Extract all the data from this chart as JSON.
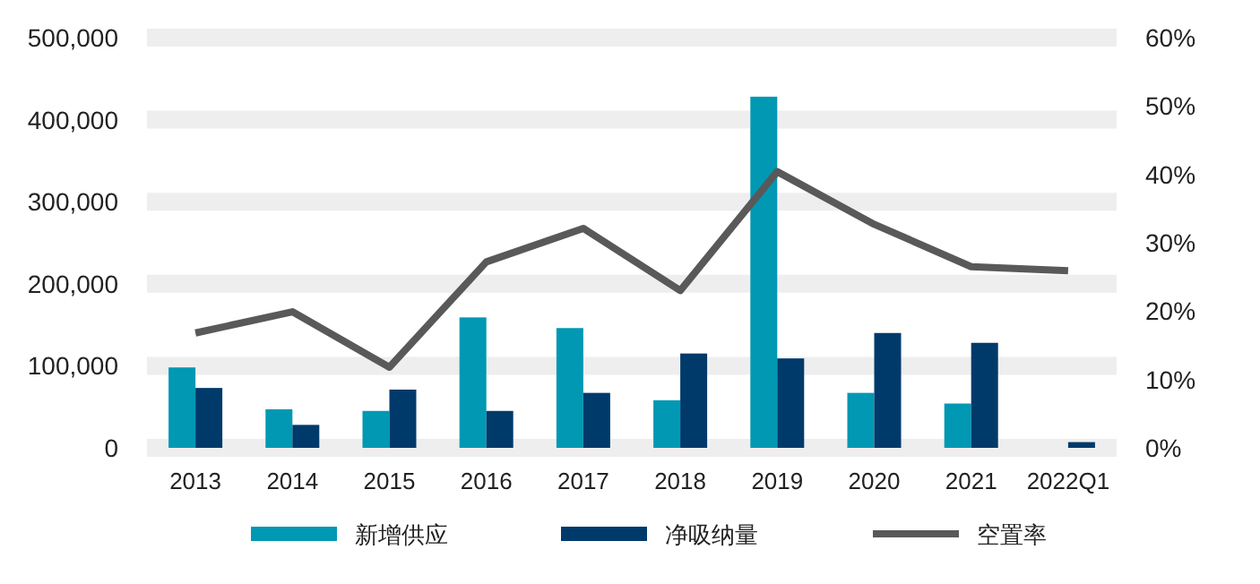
{
  "chart_data": {
    "type": "bar",
    "categories": [
      "2013",
      "2014",
      "2015",
      "2016",
      "2017",
      "2018",
      "2019",
      "2020",
      "2021",
      "2022Q1"
    ],
    "series": [
      {
        "name": "新增供应",
        "color": "#0098b3",
        "values": [
          98000,
          47000,
          45000,
          159000,
          146000,
          58000,
          428000,
          67000,
          54000,
          null
        ]
      },
      {
        "name": "净吸纳量",
        "color": "#003a6b",
        "values": [
          73000,
          28000,
          71000,
          45000,
          67000,
          115000,
          109000,
          140000,
          128000,
          7000
        ]
      },
      {
        "name": "空置率",
        "type": "line",
        "axis": "y2",
        "color": "#595959",
        "values": [
          16.8,
          19.9,
          11.8,
          27.2,
          32.1,
          23.0,
          40.4,
          32.7,
          26.5,
          25.9
        ]
      }
    ],
    "ylim": [
      0,
      500000
    ],
    "yticks": [
      {
        "value": 0,
        "label": "0"
      },
      {
        "value": 100000,
        "label": "100,000"
      },
      {
        "value": 200000,
        "label": "200,000"
      },
      {
        "value": 300000,
        "label": "300,000"
      },
      {
        "value": 400000,
        "label": "400,000"
      },
      {
        "value": 500000,
        "label": "500,000"
      }
    ],
    "y2lim": [
      0,
      60
    ],
    "y2ticks": [
      {
        "value": 0,
        "label": "0%"
      },
      {
        "value": 10,
        "label": "10%"
      },
      {
        "value": 20,
        "label": "20%"
      },
      {
        "value": 30,
        "label": "30%"
      },
      {
        "value": 40,
        "label": "40%"
      },
      {
        "value": 50,
        "label": "50%"
      },
      {
        "value": 60,
        "label": "60%"
      }
    ],
    "grid": "y",
    "legend": "bottom",
    "marker": "none",
    "line_style": "solid"
  }
}
